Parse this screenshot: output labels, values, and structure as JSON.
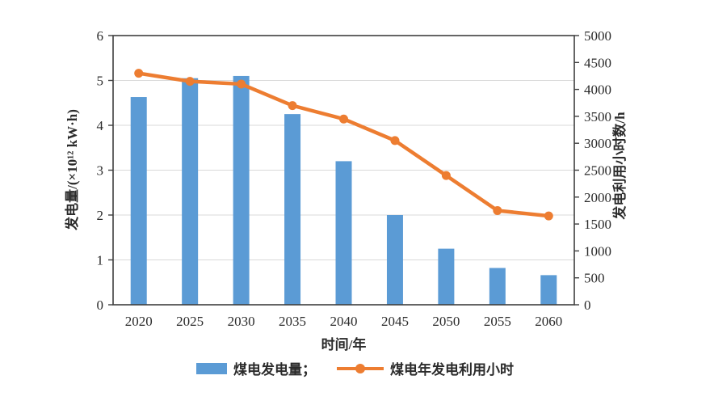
{
  "figure": {
    "x_axis_title": "时间/年",
    "left_axis_title": "发电量/(×10¹² kW·h)",
    "right_axis_title": "发电利用小时数/h"
  },
  "legend": {
    "bar_label": "煤电发电量；",
    "line_label": "煤电年发电利用小时"
  },
  "colors": {
    "bar": "#5B9BD5",
    "line": "#ED7D31",
    "axis": "#3f3f3f",
    "grid": "#d9d9d9",
    "text": "#2b2b2b"
  },
  "chart_data": {
    "type": "bar",
    "subtype": "bar+line dual-axis combo",
    "title": "",
    "categories": [
      "2020",
      "2025",
      "2030",
      "2035",
      "2040",
      "2045",
      "2050",
      "2055",
      "2060"
    ],
    "series": [
      {
        "name": "煤电发电量",
        "chart": "bar",
        "axis": "left",
        "color": "#5B9BD5",
        "values": [
          4.63,
          5.05,
          5.1,
          4.25,
          3.2,
          2.0,
          1.25,
          0.82,
          0.66
        ]
      },
      {
        "name": "煤电年发电利用小时",
        "chart": "line",
        "axis": "right",
        "color": "#ED7D31",
        "values": [
          4300,
          4150,
          4100,
          3700,
          3450,
          3050,
          2400,
          1750,
          1650
        ]
      }
    ],
    "xlabel": "时间/年",
    "left_axis": {
      "label": "发电量/(×10¹² kW·h)",
      "min": 0,
      "max": 6,
      "step": 1
    },
    "right_axis": {
      "label": "发电利用小时数/h",
      "min": 0,
      "max": 5000,
      "step": 500
    },
    "grid": "horizontal gridlines at left-axis integers 1-5",
    "legend_position": "bottom center"
  }
}
